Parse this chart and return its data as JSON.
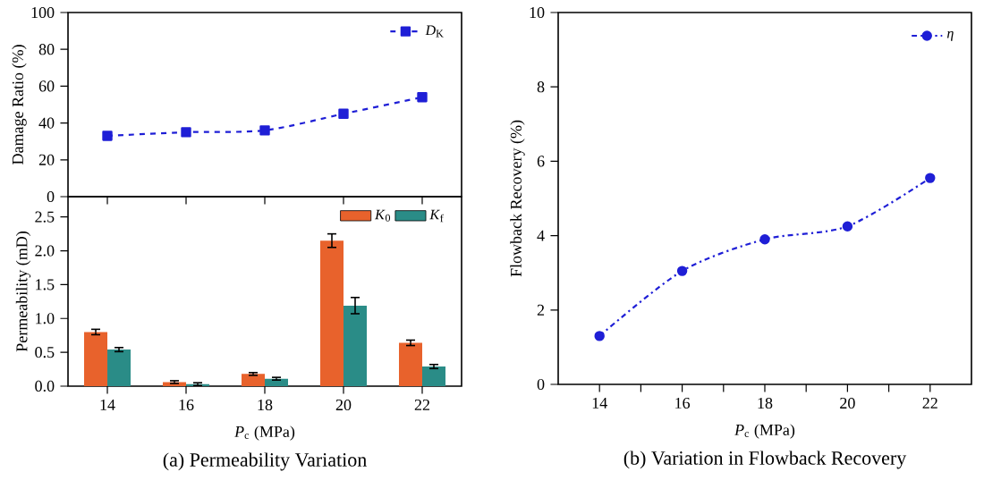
{
  "chart_data": [
    {
      "type": "line",
      "ylabel": "Damage Ratio (%)",
      "categories": [
        "14",
        "16",
        "18",
        "20",
        "22"
      ],
      "tick_labels": "y",
      "ylim": [
        0,
        100
      ],
      "yticks": [
        0,
        20,
        40,
        60,
        80,
        100
      ],
      "legend": "top right",
      "marker": "square",
      "line_style": "dashed",
      "series": [
        {
          "name": "*D*$_{K}$",
          "color": "#1f1fd6",
          "values": [
            33,
            35,
            36,
            45,
            54
          ]
        }
      ]
    },
    {
      "type": "bar",
      "title": "(a) Permeability Variation",
      "xlabel": "*P*$_{c}$ (MPa)",
      "ylabel": "Permeability (mD)",
      "categories": [
        "14",
        "16",
        "18",
        "20",
        "22"
      ],
      "ylim": [
        0,
        2.8
      ],
      "yticks": [
        {
          "value": 0,
          "label": "0.0"
        },
        0.5,
        {
          "value": 1,
          "label": "1.0"
        },
        1.5,
        {
          "value": 2,
          "label": "2.0"
        },
        2.5
      ],
      "legend": "top right",
      "series": [
        {
          "name": "*K*$_{0}$",
          "color": "#e8622c",
          "values": [
            0.8,
            0.06,
            0.18,
            2.15,
            0.64
          ],
          "errors": [
            0.04,
            0.02,
            0.02,
            0.1,
            0.04
          ]
        },
        {
          "name": "*K*$_{f}$",
          "color": "#2a8c87",
          "values": [
            0.54,
            0.03,
            0.11,
            1.19,
            0.29
          ],
          "errors": [
            0.03,
            0.02,
            0.02,
            0.12,
            0.03
          ]
        }
      ]
    },
    {
      "type": "line",
      "title": "(b) Variation in Flowback Recovery",
      "xlabel": "*P*$_{c}$ (MPa)",
      "ylabel": "Flowback Recovery (%)",
      "x": [
        14,
        16,
        18,
        20,
        22
      ],
      "xlim": [
        13,
        23
      ],
      "xticks": [
        14,
        {
          "value": 15,
          "label": null
        },
        16,
        {
          "value": 17,
          "label": null
        },
        18,
        {
          "value": 19,
          "label": null
        },
        20,
        {
          "value": 21,
          "label": null
        },
        22
      ],
      "ylim": [
        0,
        10
      ],
      "yticks": [
        0,
        2,
        4,
        6,
        8,
        10
      ],
      "legend": "top right",
      "marker": "circle",
      "line_style": "dashdot",
      "series": [
        {
          "name": "*η*",
          "color": "#1f1fd6",
          "values": [
            1.3,
            3.05,
            3.9,
            4.25,
            5.55
          ]
        }
      ]
    }
  ]
}
